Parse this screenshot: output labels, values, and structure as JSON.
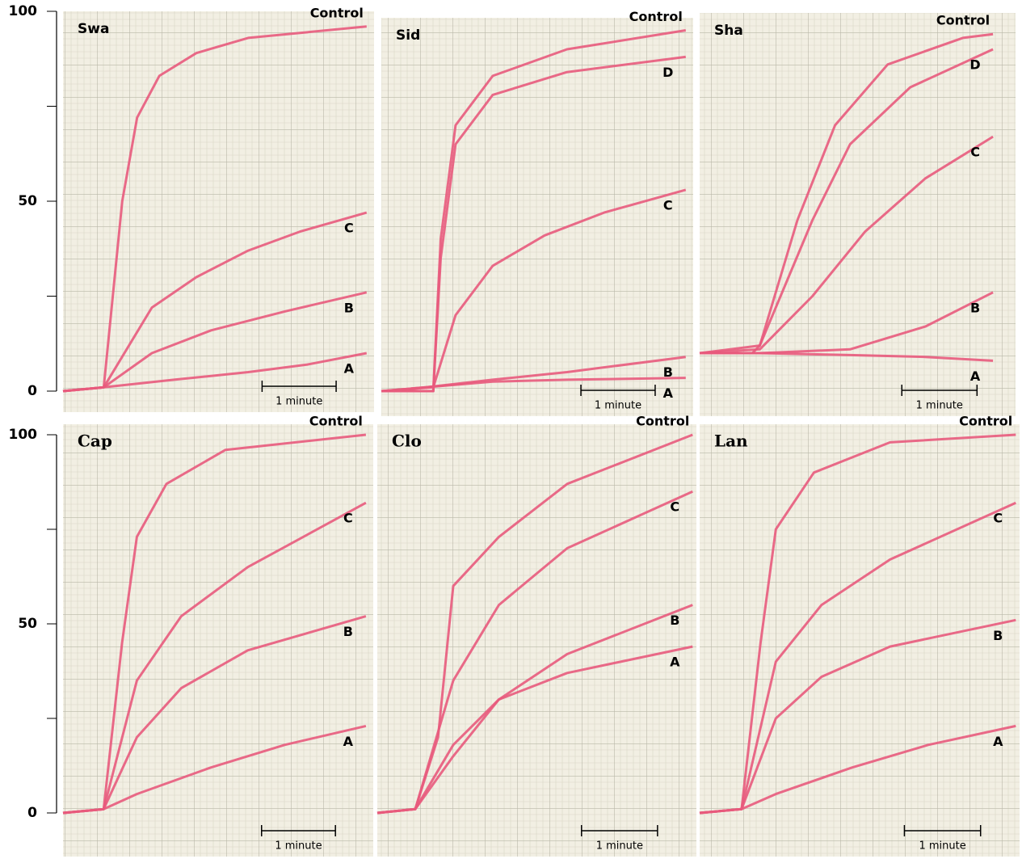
{
  "chart_data": [
    {
      "type": "line",
      "title": "Swa",
      "xlim": [
        0,
        4.2
      ],
      "ylim": [
        0,
        100
      ],
      "yticks": [
        0,
        50,
        100
      ],
      "minor_yticks": [
        25,
        75
      ],
      "show_y_axis": true,
      "scale_bar": {
        "length": 1,
        "label": "1 minute"
      },
      "series": [
        {
          "name": "Control",
          "color": "#e85a7c",
          "x": [
            0,
            0.55,
            0.8,
            1.0,
            1.3,
            1.8,
            2.5,
            4.1
          ],
          "values": [
            0,
            1,
            50,
            72,
            83,
            89,
            93,
            96
          ]
        },
        {
          "name": "C",
          "color": "#e85a7c",
          "x": [
            0,
            0.55,
            1.2,
            1.8,
            2.5,
            3.2,
            4.1
          ],
          "values": [
            0,
            1,
            22,
            30,
            37,
            42,
            47
          ]
        },
        {
          "name": "B",
          "color": "#e85a7c",
          "x": [
            0,
            0.55,
            1.2,
            2.0,
            3.0,
            4.1
          ],
          "values": [
            0,
            1,
            10,
            16,
            21,
            26
          ]
        },
        {
          "name": "A",
          "color": "#e85a7c",
          "x": [
            0,
            0.55,
            1.5,
            2.5,
            3.3,
            4.1
          ],
          "values": [
            0,
            1,
            3,
            5,
            7,
            10
          ]
        }
      ]
    },
    {
      "type": "line",
      "title": "Sid",
      "xlim": [
        0,
        4.2
      ],
      "ylim": [
        0,
        100
      ],
      "yticks": [
        0,
        50,
        100
      ],
      "minor_yticks": [
        25,
        75
      ],
      "show_y_axis": false,
      "scale_bar": {
        "length": 1,
        "label": "1 minute"
      },
      "series": [
        {
          "name": "Control",
          "color": "#e85a7c",
          "x": [
            0,
            0.7,
            0.8,
            1.0,
            1.5,
            2.5,
            4.1
          ],
          "values": [
            0,
            0,
            40,
            70,
            83,
            90,
            95
          ]
        },
        {
          "name": "D",
          "color": "#e85a7c",
          "x": [
            0,
            0.7,
            0.8,
            1.0,
            1.5,
            2.5,
            4.1
          ],
          "values": [
            0,
            0,
            35,
            65,
            78,
            84,
            88
          ]
        },
        {
          "name": "C",
          "color": "#e85a7c",
          "x": [
            0,
            0.7,
            1.0,
            1.5,
            2.2,
            3.0,
            4.1
          ],
          "values": [
            0,
            1,
            20,
            33,
            41,
            47,
            53
          ]
        },
        {
          "name": "B",
          "color": "#e85a7c",
          "x": [
            0,
            0.6,
            1.5,
            2.5,
            4.1
          ],
          "values": [
            0,
            1,
            3,
            5,
            9
          ]
        },
        {
          "name": "A",
          "color": "#e85a7c",
          "x": [
            0,
            0.6,
            1.5,
            2.5,
            4.1
          ],
          "values": [
            0,
            1,
            2.5,
            3,
            3.5
          ]
        }
      ]
    },
    {
      "type": "line",
      "title": "Sha",
      "xlim": [
        0,
        4.2
      ],
      "ylim": [
        0,
        100
      ],
      "yticks": [
        0,
        50,
        100
      ],
      "minor_yticks": [
        25,
        75
      ],
      "show_y_axis": false,
      "scale_bar": {
        "length": 1,
        "label": "1 minute"
      },
      "series": [
        {
          "name": "Control",
          "color": "#e85a7c",
          "x": [
            0,
            0.7,
            0.8,
            1.3,
            1.8,
            2.5,
            3.5,
            3.9
          ],
          "values": [
            10,
            10,
            12,
            45,
            70,
            86,
            93,
            94
          ]
        },
        {
          "name": "D",
          "color": "#e85a7c",
          "x": [
            0,
            0.8,
            1.5,
            2.0,
            2.8,
            3.9
          ],
          "values": [
            10,
            12,
            45,
            65,
            80,
            90
          ]
        },
        {
          "name": "C",
          "color": "#e85a7c",
          "x": [
            0,
            0.8,
            1.5,
            2.2,
            3.0,
            3.9
          ],
          "values": [
            10,
            11,
            25,
            42,
            56,
            67
          ]
        },
        {
          "name": "B",
          "color": "#e85a7c",
          "x": [
            0,
            0.8,
            2.0,
            3.0,
            3.9
          ],
          "values": [
            10,
            10,
            11,
            17,
            26
          ]
        },
        {
          "name": "A",
          "color": "#e85a7c",
          "x": [
            0,
            0.8,
            2.0,
            3.0,
            3.9
          ],
          "values": [
            10,
            10,
            9.5,
            9,
            8
          ]
        }
      ]
    },
    {
      "type": "line",
      "title": "Cap",
      "xlim": [
        0,
        4.2
      ],
      "ylim": [
        0,
        100
      ],
      "yticks": [
        0,
        50,
        100
      ],
      "minor_yticks": [
        25,
        75
      ],
      "show_y_axis": true,
      "scale_bar": {
        "length": 1,
        "label": "1 minute"
      },
      "series": [
        {
          "name": "Control",
          "color": "#e85a7c",
          "x": [
            0,
            0.55,
            0.8,
            1.0,
            1.4,
            2.2,
            4.1
          ],
          "values": [
            0,
            1,
            45,
            73,
            87,
            96,
            100
          ]
        },
        {
          "name": "C",
          "color": "#e85a7c",
          "x": [
            0,
            0.55,
            1.0,
            1.6,
            2.5,
            4.1
          ],
          "values": [
            0,
            1,
            35,
            52,
            65,
            82
          ]
        },
        {
          "name": "B",
          "color": "#e85a7c",
          "x": [
            0,
            0.55,
            1.0,
            1.6,
            2.5,
            4.1
          ],
          "values": [
            0,
            1,
            20,
            33,
            43,
            52
          ]
        },
        {
          "name": "A",
          "color": "#e85a7c",
          "x": [
            0,
            0.55,
            1.0,
            2.0,
            3.0,
            4.1
          ],
          "values": [
            0,
            1,
            5,
            12,
            18,
            23
          ]
        }
      ]
    },
    {
      "type": "line",
      "title": "Clo",
      "xlim": [
        0,
        4.2
      ],
      "ylim": [
        0,
        100
      ],
      "yticks": [
        0,
        50,
        100
      ],
      "minor_yticks": [
        25,
        75
      ],
      "show_y_axis": false,
      "scale_bar": {
        "length": 1,
        "label": "1 minute"
      },
      "series": [
        {
          "name": "Control",
          "color": "#e85a7c",
          "x": [
            0,
            0.5,
            0.8,
            1.0,
            1.6,
            2.5,
            4.15
          ],
          "values": [
            0,
            1,
            20,
            60,
            73,
            87,
            100
          ]
        },
        {
          "name": "C",
          "color": "#e85a7c",
          "x": [
            0,
            0.5,
            1.0,
            1.6,
            2.5,
            4.15
          ],
          "values": [
            0,
            1,
            35,
            55,
            70,
            85
          ]
        },
        {
          "name": "B",
          "color": "#e85a7c",
          "x": [
            0,
            0.5,
            1.0,
            1.6,
            2.5,
            4.15
          ],
          "values": [
            0,
            1,
            15,
            30,
            42,
            55
          ]
        },
        {
          "name": "A",
          "color": "#e85a7c",
          "x": [
            0,
            0.5,
            1.0,
            1.6,
            2.5,
            4.15
          ],
          "values": [
            0,
            1,
            18,
            30,
            37,
            44
          ]
        }
      ]
    },
    {
      "type": "line",
      "title": "Lan",
      "xlim": [
        0,
        4.2
      ],
      "ylim": [
        0,
        100
      ],
      "yticks": [
        0,
        50,
        100
      ],
      "minor_yticks": [
        25,
        75
      ],
      "show_y_axis": false,
      "scale_bar": {
        "length": 1,
        "label": "1 minute"
      },
      "series": [
        {
          "name": "Control",
          "color": "#e85a7c",
          "x": [
            0,
            0.55,
            0.8,
            1.0,
            1.5,
            2.5,
            4.15
          ],
          "values": [
            0,
            1,
            45,
            75,
            90,
            98,
            100
          ]
        },
        {
          "name": "C",
          "color": "#e85a7c",
          "x": [
            0,
            0.55,
            1.0,
            1.6,
            2.5,
            4.15
          ],
          "values": [
            0,
            1,
            40,
            55,
            67,
            82
          ]
        },
        {
          "name": "B",
          "color": "#e85a7c",
          "x": [
            0,
            0.55,
            1.0,
            1.6,
            2.5,
            4.15
          ],
          "values": [
            0,
            1,
            25,
            36,
            44,
            51
          ]
        },
        {
          "name": "A",
          "color": "#e85a7c",
          "x": [
            0,
            0.55,
            1.0,
            2.0,
            3.0,
            4.15
          ],
          "values": [
            0,
            1,
            5,
            12,
            18,
            23
          ]
        }
      ]
    }
  ]
}
